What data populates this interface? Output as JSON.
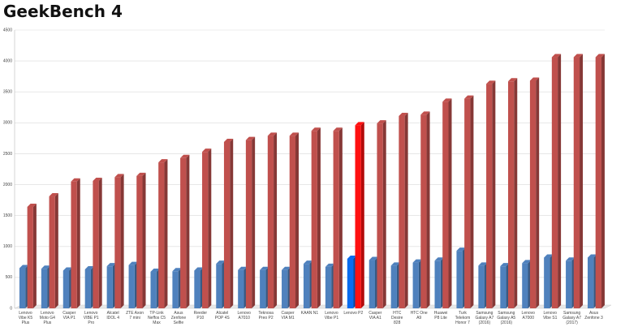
{
  "chart_data": {
    "type": "bar3d",
    "title": "GeekBench 4",
    "categories": [
      "Lenovo Vibe K5 Plus",
      "Lenovo Moto G4 Plus",
      "Casper VIA P1",
      "Lenovo VIBE P1 Pro",
      "Alcatel IDOL 4",
      "ZTE Axon 7 mini",
      "TP-Link Neffos C5 Max",
      "Asus Zenfone Selfie",
      "Reeder P10",
      "Alcatel POP 4S",
      "Lenovo A7010",
      "Teknosa Preo P2",
      "Casper VIA M1",
      "KAAN N1",
      "Lenovo Vibe P1",
      "Lenovo P2",
      "Casper VIA A1",
      "HTC Desire 828",
      "HTC One A9",
      "Huawei P8 Lite",
      "Turk Telekom Honor 7",
      "Samsung Galaxy A7 (2016)",
      "Samsung Galaxy A5 (2016)",
      "Lenovo A7000",
      "Lenovo Vibe S1",
      "Samsung Galaxy A7 (2017)",
      "Asus Zenfone 3"
    ],
    "series": [
      {
        "values": [
          650,
          640,
          610,
          630,
          680,
          700,
          590,
          600,
          610,
          720,
          620,
          620,
          620,
          720,
          670,
          800,
          780,
          690,
          740,
          770,
          930,
          690,
          680,
          730,
          820,
          770,
          820
        ],
        "colors": [
          "#4f81bd",
          "#4f81bd",
          "#4f81bd",
          "#4f81bd",
          "#4f81bd",
          "#4f81bd",
          "#4f81bd",
          "#4f81bd",
          "#4f81bd",
          "#4f81bd",
          "#4f81bd",
          "#4f81bd",
          "#4f81bd",
          "#4f81bd",
          "#4f81bd",
          "#0a6cf0",
          "#4f81bd",
          "#4f81bd",
          "#4f81bd",
          "#4f81bd",
          "#4f81bd",
          "#4f81bd",
          "#4f81bd",
          "#4f81bd",
          "#4f81bd",
          "#4f81bd",
          "#4f81bd"
        ]
      },
      {
        "values": [
          1640,
          1810,
          2050,
          2060,
          2120,
          2140,
          2360,
          2430,
          2530,
          2690,
          2720,
          2790,
          2790,
          2870,
          2870,
          2960,
          2990,
          3110,
          3130,
          3340,
          3390,
          3630,
          3670,
          3680,
          4060,
          4060,
          4060
        ],
        "colors": [
          "#c0504d",
          "#c0504d",
          "#c0504d",
          "#c0504d",
          "#c0504d",
          "#c0504d",
          "#c0504d",
          "#c0504d",
          "#c0504d",
          "#c0504d",
          "#c0504d",
          "#c0504d",
          "#c0504d",
          "#c0504d",
          "#c0504d",
          "#ff1010",
          "#c0504d",
          "#c0504d",
          "#c0504d",
          "#c0504d",
          "#c0504d",
          "#c0504d",
          "#c0504d",
          "#c0504d",
          "#c0504d",
          "#c0504d",
          "#c0504d"
        ]
      }
    ],
    "ylim": [
      0,
      4500
    ],
    "yticks": [
      0,
      500,
      1000,
      1500,
      2000,
      2500,
      3000,
      3500,
      4000,
      4500
    ],
    "grid": true
  }
}
